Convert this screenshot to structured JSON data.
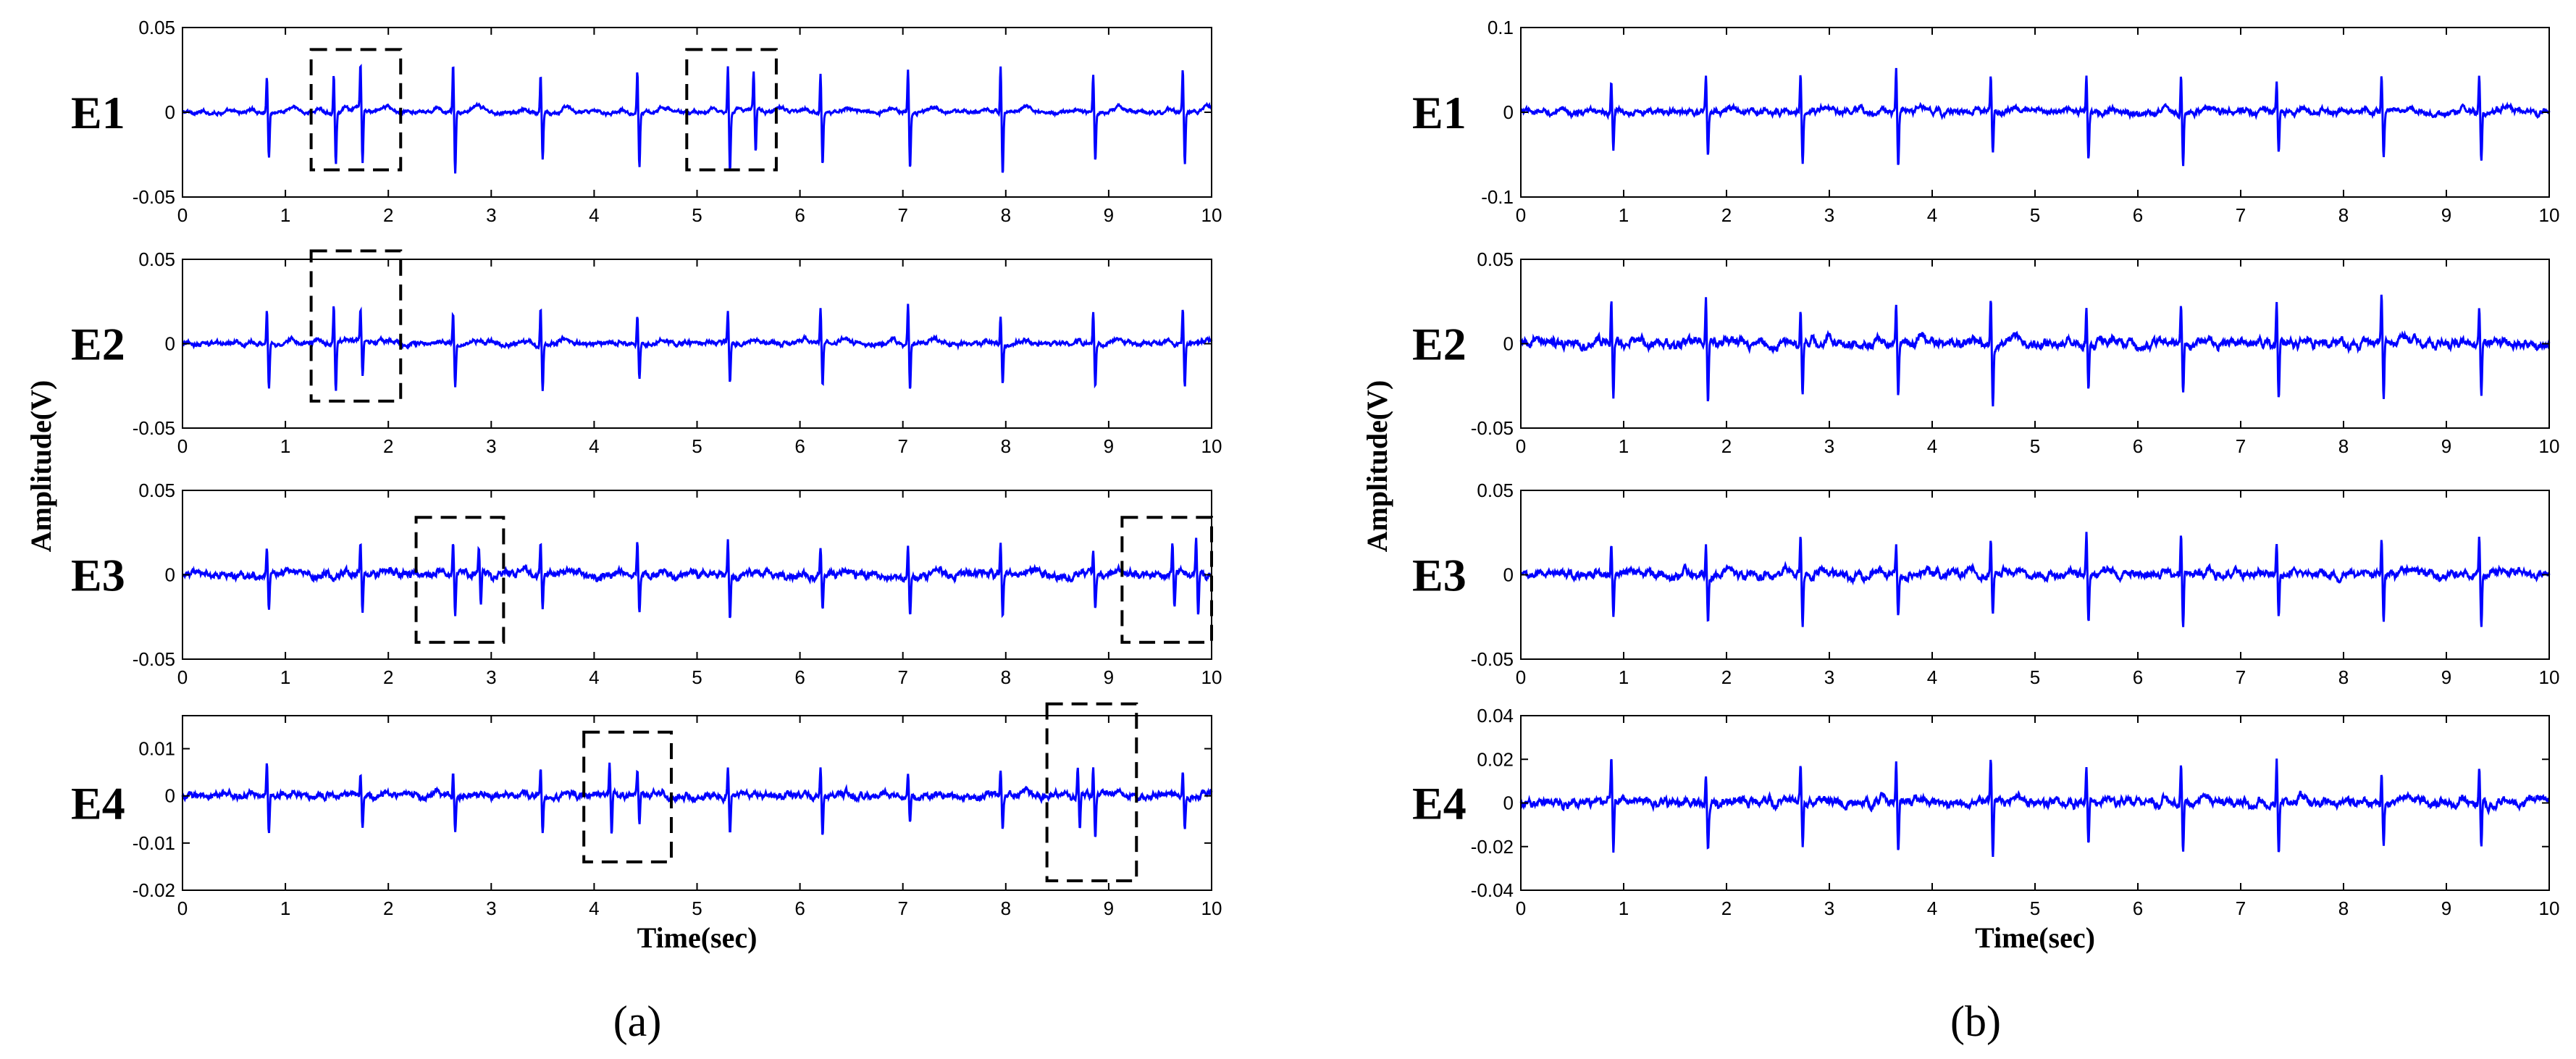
{
  "chart_data": [
    {
      "type": "line",
      "panel_label": "(a)",
      "xlabel": "Time(sec)",
      "ylabel": "Amplitude(V)",
      "xlim": [
        0,
        10
      ],
      "xticks": [
        0,
        1,
        2,
        3,
        4,
        5,
        6,
        7,
        8,
        9,
        10
      ],
      "line_color": "#0000ff",
      "annotations": "dashed rectangles marking irregular beats",
      "subplots": [
        {
          "name": "E1",
          "ylim": [
            -0.05,
            0.05
          ],
          "yticks": [
            -0.05,
            0,
            0.05
          ],
          "tick_labels": [
            "-0.05",
            "0",
            "0.05"
          ],
          "beats": [
            0.82,
            1.47,
            1.73,
            2.63,
            3.48,
            4.42,
            5.3,
            5.55,
            6.2,
            7.05,
            7.95,
            8.85,
            9.72
          ],
          "peak_amplitude": 0.025,
          "noise_amplitude": 0.0012,
          "highlight_boxes": [
            [
              1.25,
              2.12,
              -0.034,
              0.037
            ],
            [
              4.9,
              5.77,
              -0.034,
              0.037
            ]
          ]
        },
        {
          "name": "E2",
          "ylim": [
            -0.05,
            0.05
          ],
          "yticks": [
            -0.05,
            0,
            0.05
          ],
          "tick_labels": [
            "-0.05",
            "0",
            "0.05"
          ],
          "beats": [
            0.82,
            1.47,
            1.73,
            2.63,
            3.48,
            4.42,
            5.3,
            6.2,
            7.05,
            7.95,
            8.85,
            9.72
          ],
          "peak_amplitude": 0.02,
          "noise_amplitude": 0.0015,
          "highlight_boxes": [
            [
              1.25,
              2.12,
              -0.034,
              0.055
            ]
          ]
        },
        {
          "name": "E3",
          "ylim": [
            -0.05,
            0.05
          ],
          "yticks": [
            -0.05,
            0,
            0.05
          ],
          "tick_labels": [
            "-0.05",
            "0",
            "0.05"
          ],
          "beats": [
            0.82,
            1.73,
            2.63,
            2.88,
            3.48,
            4.42,
            5.3,
            6.2,
            7.05,
            7.95,
            8.85,
            9.62,
            9.85
          ],
          "peak_amplitude": 0.018,
          "noise_amplitude": 0.0025,
          "highlight_boxes": [
            [
              2.27,
              3.12,
              -0.04,
              0.034
            ],
            [
              9.13,
              10.0,
              -0.04,
              0.034
            ]
          ]
        },
        {
          "name": "E4",
          "ylim": [
            -0.02,
            0.017
          ],
          "yticks": [
            -0.02,
            -0.01,
            0,
            0.01
          ],
          "tick_labels": [
            "-0.02",
            "-0.01",
            "0",
            "0.01"
          ],
          "beats": [
            0.82,
            1.73,
            2.63,
            3.48,
            4.15,
            4.42,
            5.3,
            6.2,
            7.05,
            7.95,
            8.7,
            8.85,
            9.72
          ],
          "peak_amplitude": 0.006,
          "noise_amplitude": 0.0008,
          "highlight_boxes": [
            [
              3.9,
              4.75,
              -0.014,
              0.0135
            ],
            [
              8.4,
              9.27,
              -0.018,
              0.0195
            ]
          ]
        }
      ]
    },
    {
      "type": "line",
      "panel_label": "(b)",
      "xlabel": "Time(sec)",
      "ylabel": "Amplitude(V)",
      "xlim": [
        0,
        10
      ],
      "xticks": [
        0,
        1,
        2,
        3,
        4,
        5,
        6,
        7,
        8,
        9,
        10
      ],
      "line_color": "#0000ff",
      "subplots": [
        {
          "name": "E1",
          "ylim": [
            -0.1,
            0.1
          ],
          "yticks": [
            -0.1,
            0,
            0.1
          ],
          "tick_labels": [
            "-0.1",
            "0",
            "0.1"
          ],
          "beats": [
            0.88,
            1.8,
            2.72,
            3.65,
            4.57,
            5.5,
            6.42,
            7.35,
            8.37,
            9.32
          ],
          "peak_amplitude": 0.045,
          "noise_amplitude": 0.004,
          "highlight_boxes": []
        },
        {
          "name": "E2",
          "ylim": [
            -0.05,
            0.05
          ],
          "yticks": [
            -0.05,
            0,
            0.05
          ],
          "tick_labels": [
            "-0.05",
            "0",
            "0.05"
          ],
          "beats": [
            0.88,
            1.8,
            2.72,
            3.65,
            4.57,
            5.5,
            6.42,
            7.35,
            8.37,
            9.32
          ],
          "peak_amplitude": 0.025,
          "noise_amplitude": 0.003,
          "highlight_boxes": []
        },
        {
          "name": "E3",
          "ylim": [
            -0.05,
            0.05
          ],
          "yticks": [
            -0.05,
            0,
            0.05
          ],
          "tick_labels": [
            "-0.05",
            "0",
            "0.05"
          ],
          "beats": [
            0.88,
            1.8,
            2.72,
            3.65,
            4.57,
            5.5,
            6.42,
            7.35,
            8.37,
            9.32
          ],
          "peak_amplitude": 0.022,
          "noise_amplitude": 0.0028,
          "highlight_boxes": []
        },
        {
          "name": "E4",
          "ylim": [
            -0.04,
            0.04
          ],
          "yticks": [
            -0.04,
            -0.02,
            0,
            0.02,
            0.04
          ],
          "tick_labels": [
            "-0.04",
            "-0.02",
            "0",
            "0.02",
            "0.04"
          ],
          "beats": [
            0.88,
            1.8,
            2.72,
            3.65,
            4.57,
            5.5,
            6.42,
            7.35,
            8.37,
            9.32
          ],
          "peak_amplitude": 0.018,
          "noise_amplitude": 0.0022,
          "highlight_boxes": []
        }
      ]
    }
  ]
}
